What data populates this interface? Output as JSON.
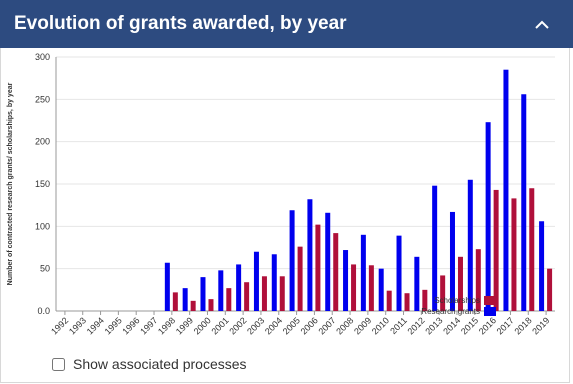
{
  "header": {
    "title": "Evolution of grants awarded, by year"
  },
  "chart_data": {
    "type": "bar",
    "y_label": "Number of contracted research grants/ scholarships, by year",
    "categories": [
      "1992",
      "1993",
      "1994",
      "1995",
      "1996",
      "1997",
      "1998",
      "1999",
      "2000",
      "2001",
      "2002",
      "2003",
      "2004",
      "2005",
      "2006",
      "2007",
      "2008",
      "2009",
      "2010",
      "2011",
      "2012",
      "2013",
      "2014",
      "2015",
      "2016",
      "2017",
      "2018",
      "2019"
    ],
    "series": [
      {
        "name": "Research grants",
        "color": "#0000ee",
        "values": [
          0,
          0,
          0,
          0,
          0,
          0,
          57,
          27,
          40,
          48,
          55,
          70,
          67,
          119,
          132,
          116,
          72,
          90,
          50,
          89,
          64,
          148,
          117,
          155,
          223,
          285,
          256,
          106
        ]
      },
      {
        "name": "Scholarships",
        "color": "#b0103a",
        "values": [
          0,
          0,
          0,
          0,
          0,
          0,
          22,
          12,
          14,
          27,
          34,
          41,
          41,
          76,
          102,
          92,
          55,
          54,
          24,
          21,
          25,
          42,
          64,
          73,
          143,
          133,
          145,
          50
        ]
      }
    ],
    "ylim": [
      0,
      300
    ],
    "yticks": [
      {
        "value": 0,
        "label": "0.0"
      },
      50,
      100,
      150,
      200,
      250,
      300
    ],
    "grid": true
  },
  "controls": {
    "checkbox_label": "Show associated processes"
  }
}
